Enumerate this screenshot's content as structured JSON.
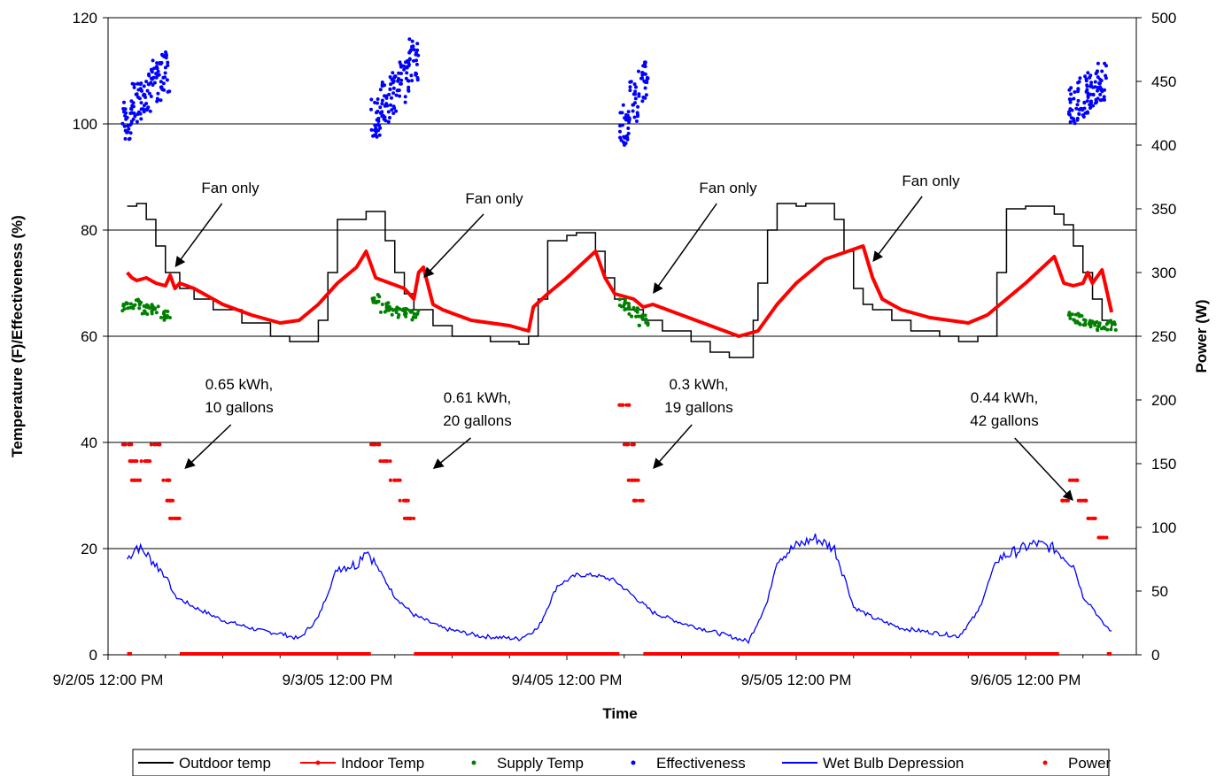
{
  "chart_data": {
    "type": "line",
    "title": "",
    "xlabel": "Time",
    "ylabel": "Temperature (F)/Effectiveness (%)",
    "y2label": "Power (W)",
    "ylim": [
      0,
      120
    ],
    "y2lim": [
      0,
      500
    ],
    "x_range_days": [
      "9/2/05 12:00 PM",
      "9/6/05 9:00 PM"
    ],
    "yticks": [
      0,
      20,
      40,
      60,
      80,
      100,
      120
    ],
    "y2ticks": [
      0,
      50,
      100,
      150,
      200,
      250,
      300,
      350,
      400,
      450,
      500
    ],
    "xticks": [
      "9/2/05 12:00 PM",
      "9/3/05 12:00 PM",
      "9/4/05 12:00 PM",
      "9/5/05 12:00 PM",
      "9/6/05 12:00 PM"
    ],
    "grid": "horizontal",
    "legend_position": "bottom",
    "series": [
      {
        "name": "Outdoor temp",
        "style": "line",
        "color": "#000000",
        "axis": "left",
        "x": [
          "9/2/05 14:00",
          "9/2/05 15:00",
          "9/2/05 16:00",
          "9/2/05 17:00",
          "9/2/05 18:00",
          "9/2/05 19:30",
          "9/2/05 21:00",
          "9/2/05 23:00",
          "9/3/05 02:00",
          "9/3/05 05:00",
          "9/3/05 07:00",
          "9/3/05 08:30",
          "9/3/05 10:00",
          "9/3/05 11:00",
          "9/3/05 12:00",
          "9/3/05 13:30",
          "9/3/05 15:00",
          "9/3/05 16:00",
          "9/3/05 17:00",
          "9/3/05 18:00",
          "9/3/05 19:00",
          "9/3/05 20:00",
          "9/3/05 22:00",
          "9/4/05 00:00",
          "9/4/05 04:00",
          "9/4/05 07:00",
          "9/4/05 08:00",
          "9/4/05 09:00",
          "9/4/05 10:00",
          "9/4/05 12:00",
          "9/4/05 13:00",
          "9/4/05 14:00",
          "9/4/05 15:00",
          "9/4/05 16:00",
          "9/4/05 17:00",
          "9/4/05 18:00",
          "9/4/05 20:00",
          "9/4/05 22:00",
          "9/5/05 01:00",
          "9/5/05 03:00",
          "9/5/05 05:00",
          "9/5/05 07:30",
          "9/5/05 08:00",
          "9/5/05 09:00",
          "9/5/05 10:00",
          "9/5/05 12:00",
          "9/5/05 13:00",
          "9/5/05 15:00",
          "9/5/05 16:00",
          "9/5/05 17:00",
          "9/5/05 18:00",
          "9/5/05 19:00",
          "9/5/05 20:00",
          "9/5/05 22:00",
          "9/6/05 00:00",
          "9/6/05 03:00",
          "9/6/05 05:00",
          "9/6/05 07:00",
          "9/6/05 09:00",
          "9/6/05 10:00",
          "9/6/05 12:00",
          "9/6/05 14:00",
          "9/6/05 15:00",
          "9/6/05 16:00",
          "9/6/05 17:00",
          "9/6/05 18:00",
          "9/6/05 19:00",
          "9/6/05 20:00",
          "9/6/05 21:00"
        ],
        "values": [
          84.5,
          85,
          82,
          77,
          72,
          69,
          67,
          65,
          62.5,
          60,
          59,
          59,
          63,
          72,
          82,
          82,
          83.5,
          83.5,
          78,
          72,
          68,
          65,
          62,
          60,
          59,
          58.5,
          60,
          67,
          78,
          79,
          79.5,
          79.5,
          76,
          71,
          67,
          65,
          63,
          61,
          59,
          57,
          56,
          63,
          70,
          80,
          85,
          84.5,
          85,
          85,
          82,
          76,
          69,
          66,
          65,
          63,
          61,
          60,
          59,
          60,
          72,
          84,
          84.5,
          84.5,
          83,
          81,
          77,
          72,
          67,
          63,
          61.5
        ]
      },
      {
        "name": "Indoor Temp",
        "style": "line-marker",
        "color": "#ff0000",
        "axis": "left",
        "x": [
          "9/2/05 14:00",
          "9/2/05 14:30",
          "9/2/05 15:00",
          "9/2/05 16:00",
          "9/2/05 17:00",
          "9/2/05 18:00",
          "9/2/05 18:30",
          "9/2/05 19:00",
          "9/2/05 19:30",
          "9/2/05 21:00",
          "9/3/05 00:00",
          "9/3/05 03:00",
          "9/3/05 06:00",
          "9/3/05 08:00",
          "9/3/05 10:00",
          "9/3/05 12:00",
          "9/3/05 14:00",
          "9/3/05 15:00",
          "9/3/05 16:00",
          "9/3/05 19:00",
          "9/3/05 20:00",
          "9/3/05 20:30",
          "9/3/05 21:00",
          "9/3/05 22:00",
          "9/3/05 23:00",
          "9/4/05 02:00",
          "9/4/05 06:00",
          "9/4/05 08:00",
          "9/4/05 08:30",
          "9/4/05 10:00",
          "9/4/05 12:00",
          "9/4/05 15:00",
          "9/4/05 16:00",
          "9/4/05 17:00",
          "9/4/05 18:00",
          "9/4/05 19:00",
          "9/4/05 20:00",
          "9/4/05 21:00",
          "9/5/05 00:00",
          "9/5/05 03:00",
          "9/5/05 06:00",
          "9/5/05 08:00",
          "9/5/05 10:00",
          "9/5/05 12:00",
          "9/5/05 15:00",
          "9/5/05 19:00",
          "9/5/05 20:00",
          "9/5/05 21:00",
          "9/5/05 22:00",
          "9/5/05 23:00",
          "9/6/05 02:00",
          "9/6/05 06:00",
          "9/6/05 08:00",
          "9/6/05 10:00",
          "9/6/05 12:00",
          "9/6/05 15:00",
          "9/6/05 16:00",
          "9/6/05 17:00",
          "9/6/05 18:00",
          "9/6/05 18:30",
          "9/6/05 19:00",
          "9/6/05 20:00",
          "9/6/05 21:00"
        ],
        "values": [
          72,
          71,
          70.5,
          71,
          70,
          69.5,
          71.5,
          69,
          70,
          69,
          66,
          64,
          62.5,
          63,
          66,
          70,
          73,
          76,
          71,
          69,
          67,
          72,
          73,
          66,
          65,
          63,
          62,
          61,
          65.5,
          68,
          71,
          76,
          71,
          68,
          67.5,
          67,
          65.5,
          66,
          64,
          62,
          60,
          61,
          66,
          70,
          74.5,
          77,
          71,
          67,
          66,
          65,
          63.5,
          62.5,
          64,
          67,
          70,
          75,
          70,
          69.5,
          70,
          72,
          70,
          72.5,
          64.5
        ]
      },
      {
        "name": "Supply Temp",
        "style": "marker",
        "color": "#008000",
        "axis": "left",
        "x": [
          "9/2/05 14:00",
          "9/2/05 15:00",
          "9/2/05 16:00",
          "9/2/05 17:00",
          "9/2/05 18:00",
          "9/3/05 16:00",
          "9/3/05 17:00",
          "9/3/05 18:00",
          "9/3/05 19:00",
          "9/3/05 20:00",
          "9/4/05 18:00",
          "9/4/05 19:00",
          "9/4/05 20:00",
          "9/6/05 17:00",
          "9/6/05 18:00",
          "9/6/05 19:00",
          "9/6/05 20:00",
          "9/6/05 21:00"
        ],
        "values": [
          65.5,
          66,
          65,
          65,
          64,
          67,
          65.5,
          64.5,
          64.5,
          64,
          66,
          64.5,
          63,
          63.5,
          63,
          62,
          62,
          62
        ]
      },
      {
        "name": "Effectiveness",
        "style": "marker",
        "color": "#0000ff",
        "axis": "left",
        "x": [
          "9/2/05 14:00",
          "9/2/05 15:00",
          "9/2/05 16:00",
          "9/2/05 17:00",
          "9/2/05 18:00",
          "9/3/05 16:00",
          "9/3/05 17:00",
          "9/3/05 18:00",
          "9/3/05 19:00",
          "9/3/05 20:00",
          "9/4/05 18:00",
          "9/4/05 19:00",
          "9/4/05 20:00",
          "9/6/05 17:00",
          "9/6/05 18:00",
          "9/6/05 19:00",
          "9/6/05 20:00"
        ],
        "values": [
          101,
          104,
          106,
          108,
          110,
          101,
          104,
          106,
          108,
          112,
          100,
          104,
          108,
          104,
          105,
          106,
          108
        ]
      },
      {
        "name": "Wet Bulb Depression",
        "style": "line",
        "color": "#0000ff",
        "axis": "left",
        "x": [
          "9/2/05 14:00",
          "9/2/05 15:00",
          "9/2/05 16:00",
          "9/2/05 18:00",
          "9/2/05 19:00",
          "9/2/05 21:00",
          "9/3/05 00:00",
          "9/3/05 04:00",
          "9/3/05 06:00",
          "9/3/05 08:00",
          "9/3/05 10:00",
          "9/3/05 12:00",
          "9/3/05 14:00",
          "9/3/05 15:00",
          "9/3/05 16:00",
          "9/3/05 18:00",
          "9/3/05 20:00",
          "9/3/05 23:00",
          "9/4/05 03:00",
          "9/4/05 07:00",
          "9/4/05 09:00",
          "9/4/05 11:00",
          "9/4/05 13:00",
          "9/4/05 15:00",
          "9/4/05 17:00",
          "9/4/05 19:00",
          "9/4/05 21:00",
          "9/5/05 00:00",
          "9/5/05 04:00",
          "9/5/05 07:00",
          "9/5/05 09:00",
          "9/5/05 10:00",
          "9/5/05 12:00",
          "9/5/05 14:00",
          "9/5/05 16:00",
          "9/5/05 17:00",
          "9/5/05 18:00",
          "9/5/05 20:00",
          "9/5/05 23:00",
          "9/6/05 03:00",
          "9/6/05 05:00",
          "9/6/05 07:00",
          "9/6/05 09:00",
          "9/6/05 11:00",
          "9/6/05 13:00",
          "9/6/05 15:00",
          "9/6/05 17:00",
          "9/6/05 18:00",
          "9/6/05 19:00",
          "9/6/05 20:00",
          "9/6/05 21:00"
        ],
        "values": [
          18,
          20.5,
          19,
          15,
          11,
          9,
          6.5,
          4.5,
          4,
          3,
          7,
          16.5,
          17,
          20,
          17,
          11,
          7.5,
          5,
          3.5,
          3,
          5,
          13,
          15,
          15,
          14,
          11,
          8,
          6,
          4,
          2.5,
          10,
          18,
          20.5,
          22,
          20,
          15,
          9,
          7,
          5,
          4,
          3.5,
          8,
          18,
          19.5,
          21,
          20,
          17,
          11,
          9,
          6,
          4.5
        ]
      },
      {
        "name": "Power",
        "style": "marker",
        "color": "#ff0000",
        "axis": "right",
        "x": [
          "9/2/05 14:00",
          "9/2/05 14:30",
          "9/2/05 15:00",
          "9/2/05 16:00",
          "9/2/05 17:00",
          "9/2/05 18:00",
          "9/2/05 18:30",
          "9/2/05 19:00",
          "9/3/05 16:00",
          "9/3/05 17:00",
          "9/3/05 18:00",
          "9/3/05 19:00",
          "9/3/05 19:30",
          "9/4/05 18:00",
          "9/4/05 18:30",
          "9/4/05 19:00",
          "9/4/05 19:30",
          "9/6/05 16:00",
          "9/6/05 17:00",
          "9/6/05 18:00",
          "9/6/05 19:00",
          "9/6/05 20:00"
        ],
        "values": [
          165,
          152,
          137,
          152,
          165,
          137,
          121,
          107,
          165,
          152,
          137,
          121,
          107,
          196,
          165,
          137,
          121,
          121,
          137,
          121,
          107,
          92
        ]
      }
    ],
    "annotations": [
      {
        "label": "Fan only",
        "points_to_x": "9/2/05 19:00",
        "points_to_y": 73
      },
      {
        "label": "Fan only",
        "points_to_x": "9/3/05 21:00",
        "points_to_y": 71
      },
      {
        "label": "Fan only",
        "points_to_x": "9/4/05 21:00",
        "points_to_y": 68
      },
      {
        "label": "Fan only",
        "points_to_x": "9/5/05 20:00",
        "points_to_y": 74
      },
      {
        "label_line1": "0.65 kWh,",
        "label_line2": "10 gallons",
        "points_to_x": "9/2/05 20:00",
        "points_to_y": 35
      },
      {
        "label_line1": "0.61 kWh,",
        "label_line2": "20 gallons",
        "points_to_x": "9/3/05 22:00",
        "points_to_y": 35
      },
      {
        "label_line1": "0.3 kWh,",
        "label_line2": "19 gallons",
        "points_to_x": "9/4/05 21:00",
        "points_to_y": 35
      },
      {
        "label_line1": "0.44 kWh,",
        "label_line2": "42 gallons",
        "points_to_x": "9/6/05 17:00",
        "points_to_y": 29
      }
    ]
  }
}
